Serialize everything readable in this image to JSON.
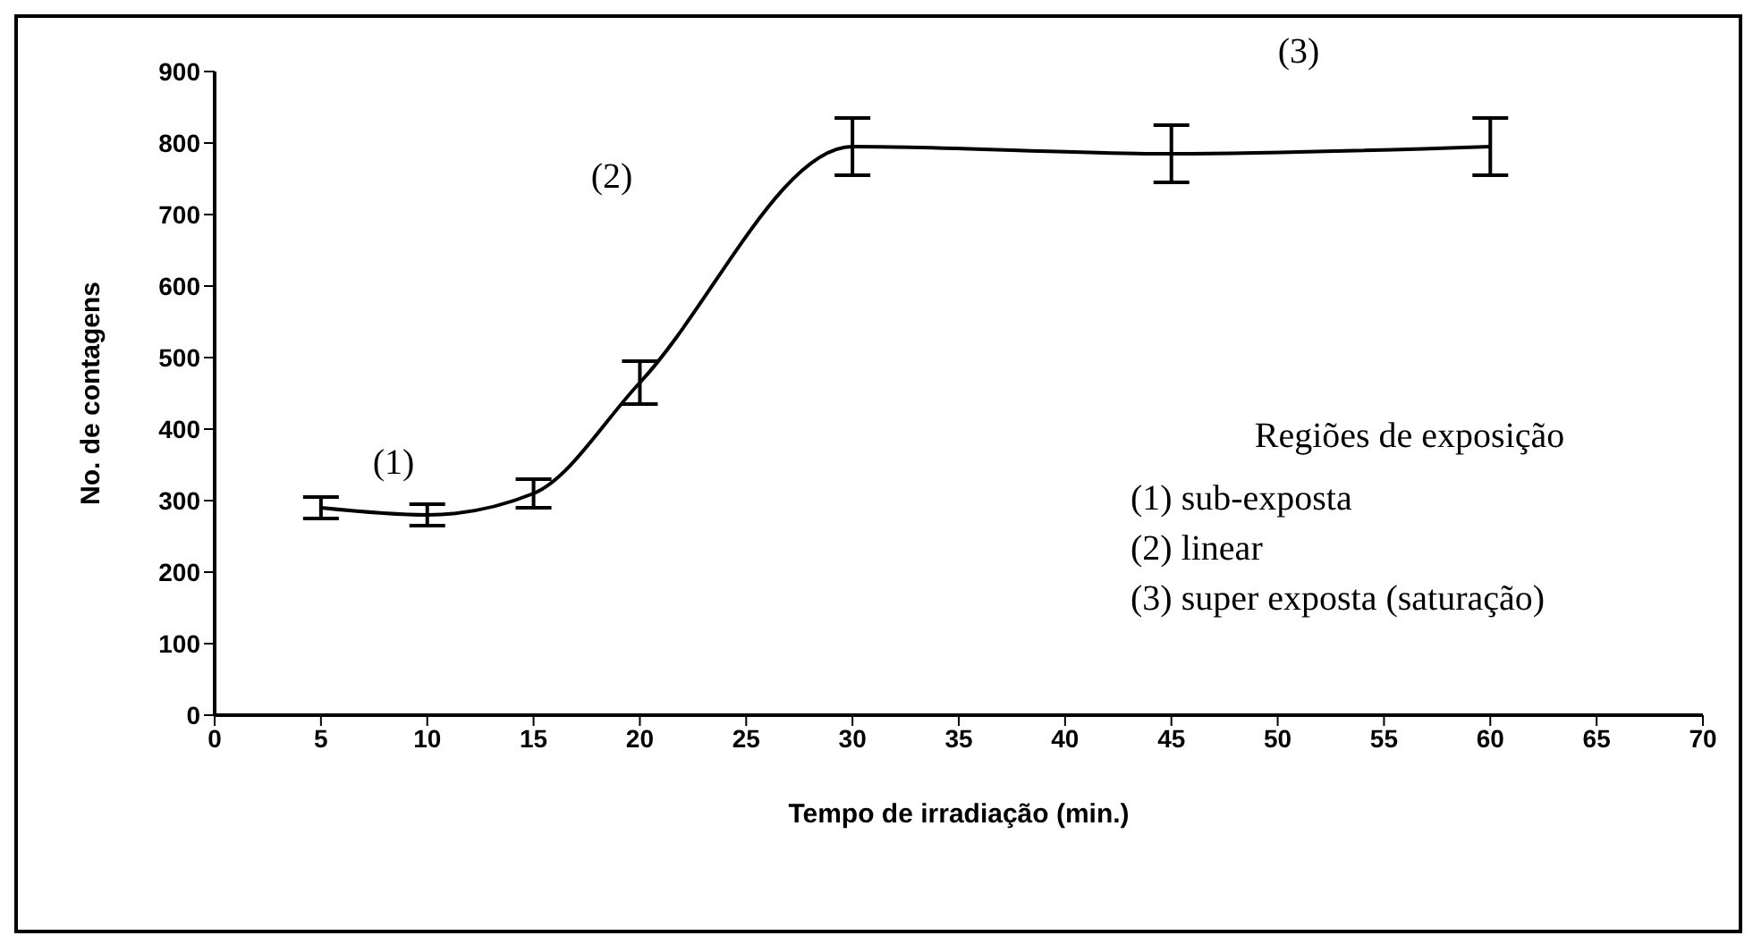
{
  "chart_data": {
    "type": "line",
    "xlabel": "Tempo de irradiação (min.)",
    "ylabel": "No. de contagens",
    "x": [
      5,
      10,
      15,
      20,
      30,
      45,
      60
    ],
    "series": [
      {
        "color": "#000000",
        "values": [
          290,
          280,
          310,
          465,
          795,
          785,
          795
        ],
        "errors": [
          15,
          15,
          20,
          30,
          40,
          40,
          40
        ]
      }
    ],
    "xlim": [
      0,
      70
    ],
    "xticks": [
      0,
      5,
      10,
      15,
      20,
      25,
      30,
      35,
      40,
      45,
      50,
      55,
      60,
      65,
      70
    ],
    "ylim": [
      0,
      900
    ],
    "yticks": [
      0,
      100,
      200,
      300,
      400,
      500,
      600,
      700,
      800,
      900
    ],
    "grid": false,
    "legend": false,
    "marker": "none",
    "line_style": "solid",
    "annotations": [
      "(1)",
      "(2)",
      "(3)",
      "Regiões de exposição",
      "(1) sub-exposta",
      "(2) linear",
      "(3) super exposta (saturação)"
    ]
  }
}
